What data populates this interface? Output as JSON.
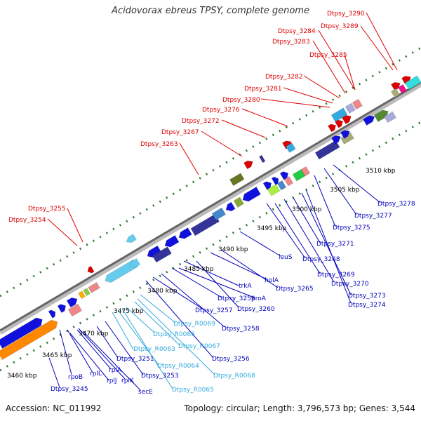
{
  "title": "Acidovorax ebreus TPSY, complete genome",
  "footer": {
    "accession": "Accession: NC_011992",
    "stats": "Topology: circular; Length: 3,796,573 bp; Genes: 3,544"
  },
  "colors": {
    "upper_label": "#dd0000",
    "lower_label": "#0000bb",
    "rna_label": "#33aadd",
    "axis": "#888888",
    "tick": "#2a7a2a"
  },
  "ruler_labels": [
    "3460 kbp",
    "3465 kbp",
    "3470 kbp",
    "3475 kbp",
    "3480 kbp",
    "3485 kbp",
    "3490 kbp",
    "3495 kbp",
    "3500 kbp",
    "3505 kbp",
    "3510 kbp"
  ],
  "upper_labels": [
    "Dtpsy_3254",
    "Dtpsy_3255",
    "Dtpsy_3263",
    "Dtpsy_3267",
    "Dtpsy_3272",
    "Dtpsy_3276",
    "Dtpsy_3280",
    "Dtpsy_3281",
    "Dtpsy_3282",
    "Dtpsy_3283",
    "Dtpsy_3284",
    "Dtpsy_3285",
    "Dtpsy_3289",
    "Dtpsy_3290"
  ],
  "lower_labels": [
    "Dtpsy_3245",
    "rpoB",
    "rplL",
    "rplJ",
    "rplA",
    "rplK",
    "secE",
    "Dtpsy_3251",
    "Dtpsy_3253",
    "Dtpsy_3256",
    "Dtpsy_3257",
    "Dtpsy_3258",
    "Dtpsy_3259",
    "proA",
    "trkA",
    "Dtpsy_3260",
    "holA",
    "Dtpsy_3265",
    "leuS",
    "Dtpsy_3268",
    "Dtpsy_3269",
    "Dtpsy_3270",
    "Dtpsy_3271",
    "Dtpsy_3273",
    "Dtpsy_3274",
    "Dtpsy_3275",
    "Dtpsy_3277",
    "Dtpsy_3278"
  ],
  "rna_labels": [
    "Dtpsy_R0063",
    "Dtpsy_R0064",
    "Dtpsy_R0065",
    "Dtpsy_R0066",
    "Dtpsy_R0067",
    "Dtpsy_R0068",
    "Dtpsy_R0069"
  ]
}
